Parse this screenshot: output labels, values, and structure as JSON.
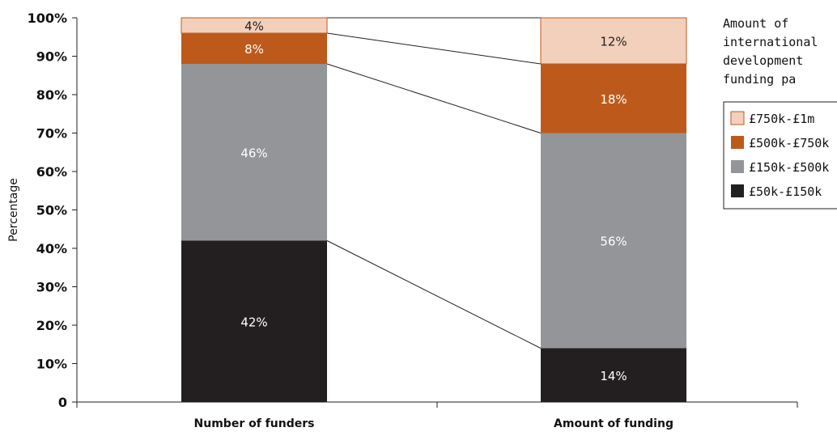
{
  "chart_data": {
    "type": "bar",
    "stacked": true,
    "percent": true,
    "categories": [
      "Number of funders",
      "Amount of funding"
    ],
    "series": [
      {
        "name": "£50k-£150k",
        "values": [
          42,
          14
        ],
        "labels": [
          "42%",
          "14%"
        ],
        "color": "#231f20",
        "text_color": "#ffffff"
      },
      {
        "name": "£150k-£500k",
        "values": [
          46,
          56
        ],
        "labels": [
          "46%",
          "56%"
        ],
        "color": "#939598",
        "text_color": "#ffffff"
      },
      {
        "name": "£500k-£750k",
        "values": [
          8,
          18
        ],
        "labels": [
          "8%",
          "18%"
        ],
        "color": "#bd5a1b",
        "text_color": "#ffffff"
      },
      {
        "name": "£750k-£1m",
        "values": [
          4,
          12
        ],
        "labels": [
          "4%",
          "12%"
        ],
        "color": "#f2d0bc",
        "text_color": "#231f20"
      }
    ],
    "xlabel": "",
    "ylabel": "Percentage",
    "ylim": [
      0,
      100
    ],
    "yticks": [
      0,
      10,
      20,
      30,
      40,
      50,
      60,
      70,
      80,
      90,
      100
    ],
    "ytick_labels": [
      "0",
      "10%",
      "20%",
      "30%",
      "40%",
      "50%",
      "60%",
      "70%",
      "80%",
      "90%",
      "100%"
    ],
    "grid": false,
    "connector_lines": true,
    "legend": {
      "title": [
        "Amount of",
        "international",
        "development",
        "funding pa"
      ],
      "position": "right",
      "order": [
        "£750k-£1m",
        "£500k-£750k",
        "£150k-£500k",
        "£50k-£150k"
      ]
    }
  }
}
